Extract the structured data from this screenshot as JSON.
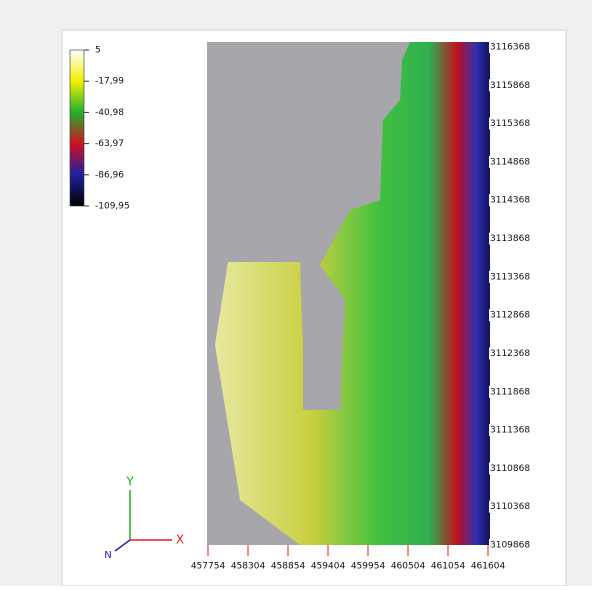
{
  "colorbar": {
    "labels": [
      "5",
      "-17,99",
      "-40,98",
      "-63,97",
      "-86,96",
      "-109,95"
    ]
  },
  "y_axis": {
    "labels": [
      3116368,
      3115868,
      3115368,
      3114868,
      3114368,
      3113868,
      3113368,
      3112868,
      3112368,
      3111868,
      3111368,
      3110868,
      3110368,
      3109868
    ]
  },
  "x_axis": {
    "labels": [
      457754,
      458304,
      458854,
      459404,
      459954,
      460504,
      461054,
      461604
    ]
  },
  "triad": {
    "y": "Y",
    "x": "X",
    "n": "N"
  }
}
